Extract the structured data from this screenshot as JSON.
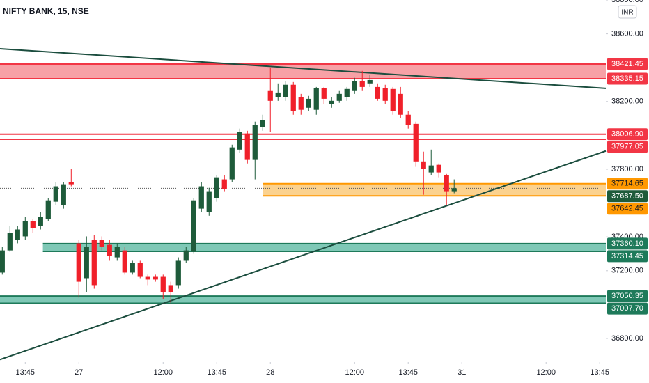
{
  "chart_data": {
    "type": "candlestick",
    "title": "NIFTY BANK, 15, NSE",
    "currency": "INR",
    "up_color": "#1e5b3a",
    "down_color": "#f0202a",
    "open": [
      37189,
      37320,
      37382,
      37403,
      37493,
      37464,
      37505,
      37608,
      37588,
      37723,
      37362,
      37156,
      37382,
      37382,
      37353,
      37279,
      37320,
      37189,
      37246,
      37164,
      37164,
      37164,
      37115,
      37115,
      37259,
      37312,
      37567,
      37546,
      37629,
      37740,
      37740,
      37916,
      38011,
      37855,
      38048,
      38266,
      38225,
      38225,
      38299,
      38225,
      38163,
      38151,
      38278,
      38184,
      38204,
      38225,
      38266,
      38319,
      38307,
      38286,
      38278,
      38274,
      38245,
      38122,
      38068,
      37846,
      37781,
      37826,
      37764,
      37670
    ],
    "high": [
      37341,
      37464,
      37464,
      37518,
      37505,
      37546,
      37629,
      37723,
      37723,
      37801,
      37382,
      37403,
      37411,
      37403,
      37382,
      37362,
      37341,
      37259,
      37259,
      37177,
      37177,
      37177,
      37135,
      37279,
      37341,
      37629,
      37723,
      37690,
      37764,
      37764,
      37945,
      38040,
      38027,
      38081,
      38122,
      38401,
      38307,
      38319,
      38315,
      38245,
      38233,
      38286,
      38286,
      38225,
      38266,
      38286,
      38340,
      38381,
      38356,
      38307,
      38299,
      38286,
      38286,
      38142,
      38081,
      37904,
      37916,
      37834,
      37772,
      37740
    ],
    "low": [
      37177,
      37312,
      37362,
      37382,
      37423,
      37444,
      37493,
      37588,
      37567,
      37699,
      37041,
      37074,
      37094,
      37320,
      37259,
      37259,
      37177,
      37177,
      37156,
      37115,
      37135,
      37033,
      37008,
      37094,
      37246,
      37300,
      37546,
      37525,
      37608,
      37670,
      37723,
      37896,
      37834,
      37740,
      38027,
      38019,
      38204,
      38204,
      38122,
      38122,
      38142,
      38122,
      38184,
      38163,
      38192,
      38204,
      38245,
      38266,
      38286,
      38204,
      38184,
      38122,
      38101,
      38040,
      37814,
      37649,
      37764,
      37752,
      37588,
      37658
    ],
    "close": [
      37320,
      37423,
      37444,
      37493,
      37452,
      37518,
      37616,
      37699,
      37711,
      37711,
      37135,
      37341,
      37115,
      37341,
      37288,
      37341,
      37189,
      37246,
      37164,
      37148,
      37148,
      37074,
      37074,
      37259,
      37320,
      37616,
      37699,
      37670,
      37752,
      37682,
      37929,
      38019,
      37855,
      38060,
      38089,
      38204,
      38253,
      38299,
      38142,
      38151,
      38216,
      38278,
      38216,
      38204,
      38245,
      38274,
      38319,
      38286,
      38327,
      38216,
      38204,
      38142,
      38122,
      38060,
      37846,
      37801,
      37822,
      37781,
      37670,
      37687.5
    ],
    "xlim": [
      -0.3,
      78.8
    ],
    "xticks": [
      {
        "value": 3,
        "label": "13:45"
      },
      {
        "value": 10,
        "label": "27"
      },
      {
        "value": 21,
        "label": "12:00"
      },
      {
        "value": 28,
        "label": "13:45"
      },
      {
        "value": 35,
        "label": "28"
      },
      {
        "value": 46,
        "label": "12:00"
      },
      {
        "value": 53,
        "label": "13:45"
      },
      {
        "value": 60,
        "label": "31"
      },
      {
        "value": 71,
        "label": "12:00"
      },
      {
        "value": 78,
        "label": "13:45"
      }
    ],
    "ylim": [
      36660,
      38800
    ],
    "yticks": [
      {
        "value": 38800,
        "label": "38800.00"
      },
      {
        "value": 38600,
        "label": "38600.00"
      },
      {
        "value": 38200,
        "label": "38200.00"
      },
      {
        "value": 37800,
        "label": "37800.00"
      },
      {
        "value": 37400,
        "label": "37400.00"
      },
      {
        "value": 37200,
        "label": "37200.00"
      },
      {
        "value": 36800,
        "label": "36800.00"
      }
    ],
    "zones": [
      {
        "top": {
          "value": 38421.45,
          "label": "38421.45"
        },
        "bottom": {
          "value": 38335.15,
          "label": "38335.15"
        },
        "x_start": -0.3,
        "fill": "#f7a1a6",
        "color": "#f23645",
        "text_color": "#ffffff"
      },
      {
        "top": {
          "value": 37714.65,
          "label": "37714.65"
        },
        "bottom": {
          "value": 37642.45,
          "label": "37642.45"
        },
        "x_start": 34,
        "fill": "#fbd28f",
        "color": "#ff9800",
        "text_color": "#131722"
      },
      {
        "top": {
          "value": 37360.1,
          "label": "37360.10"
        },
        "bottom": {
          "value": 37314.45,
          "label": "37314.45"
        },
        "x_start": 5.3,
        "fill": "#7fc8b6",
        "color": "#1e7a5a",
        "text_color": "#ffffff"
      },
      {
        "top": {
          "value": 37050.35,
          "label": "37050.35"
        },
        "bottom": {
          "value": 37007.7,
          "label": "37007.70"
        },
        "x_start": -0.3,
        "fill": "#7fc8b6",
        "color": "#1e7a5a",
        "text_color": "#ffffff"
      }
    ],
    "lines": [
      {
        "value": 38006.9,
        "label": "38006.90",
        "color": "#f23645",
        "text_color": "#ffffff"
      },
      {
        "value": 37977.05,
        "label": "37977.05",
        "color": "#f23645",
        "text_color": "#ffffff"
      },
      {
        "value": 37687.5,
        "label": "37687.50",
        "color": "#1e5b3a",
        "text_color": "#ffffff",
        "dotted": true
      }
    ],
    "trendlines": [
      {
        "x": [
          -0.3,
          78.8
        ],
        "y": [
          38512,
          38278
        ],
        "color": "#1b4d3e"
      },
      {
        "x": [
          -0.3,
          78.8
        ],
        "y": [
          36675,
          37908
        ],
        "color": "#1b4d3e"
      }
    ]
  }
}
